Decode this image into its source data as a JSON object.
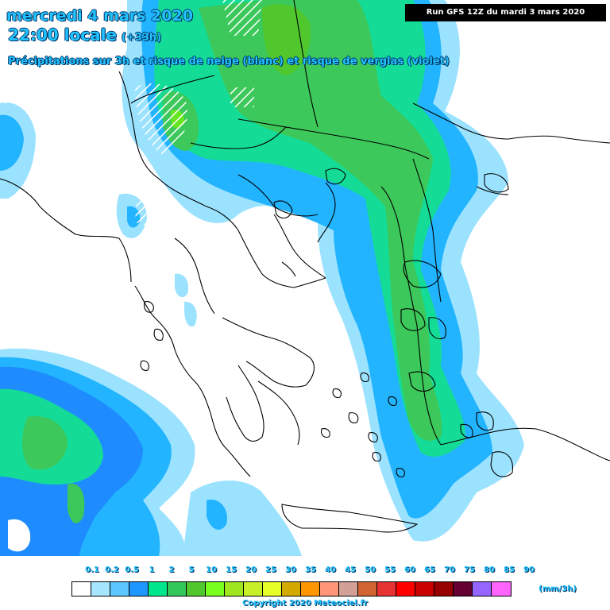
{
  "header": {
    "date_line": "mercredi 4 mars 2020",
    "time_line": "22:00 locale",
    "offset": "(+33h)",
    "description": "Précipitations sur 3h et risque de neige (blanc) et risque de verglas (violet)"
  },
  "run_label": "Run GFS 12Z du mardi 3 mars 2020",
  "legend": {
    "unit": "(mm/3h)",
    "ticks": [
      "0.1",
      "0.2",
      "0.5",
      "1",
      "2",
      "5",
      "10",
      "15",
      "20",
      "25",
      "30",
      "35",
      "40",
      "45",
      "50",
      "55",
      "60",
      "65",
      "70",
      "75",
      "80",
      "85",
      "90"
    ],
    "colors": [
      "#ffffff",
      "#a6e6ff",
      "#5cc8ff",
      "#1e96ff",
      "#00e68c",
      "#32c85a",
      "#50c82d",
      "#78ff1e",
      "#a0e61e",
      "#c8f028",
      "#e6ff28",
      "#d2aa00",
      "#ff9600",
      "#ff9678",
      "#d2a096",
      "#d26432",
      "#e63232",
      "#ff0000",
      "#c80000",
      "#960000",
      "#640032",
      "#9664ff",
      "#ff64ff"
    ]
  },
  "copyright": "Copyright 2020 Meteociel.fr",
  "map_colors": {
    "light_blue": "#9be2ff",
    "mid_blue": "#22b4ff",
    "blue": "#1e8cff",
    "teal": "#14dc96",
    "green": "#3cc85a",
    "lime": "#66e61e",
    "border": "#000000"
  }
}
